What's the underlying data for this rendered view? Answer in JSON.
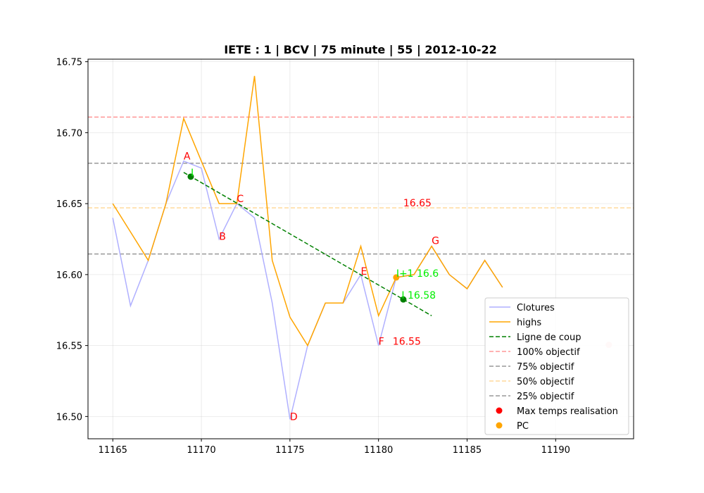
{
  "chart_data": {
    "type": "line",
    "title": "IETE : 1 | BCV | 75 minute | 55 | 2012-10-22",
    "xlabel": "",
    "ylabel": "",
    "xlim": [
      11163.6,
      11194.4
    ],
    "ylim": [
      16.4843,
      16.7518
    ],
    "x_ticks": [
      11165,
      11170,
      11175,
      11180,
      11185,
      11190
    ],
    "y_ticks": [
      16.5,
      16.55,
      16.6,
      16.65,
      16.7,
      16.75
    ],
    "y_tick_labels": [
      "16.50",
      "16.55",
      "16.60",
      "16.65",
      "16.70",
      "16.75"
    ],
    "grid": true,
    "legend_position": "lower-right",
    "colors": {
      "clotures": "#b0b0ff",
      "highs": "#ffa500",
      "ligne": "#008000",
      "obj100": "#ff9999",
      "obj75": "#999999",
      "obj50": "#ffd99c",
      "obj25": "#999999",
      "max_temps": "#ff0000",
      "pc": "#ffa500",
      "label_red": "#ff0000",
      "label_green": "#00ee00"
    },
    "series": [
      {
        "name": "Clotures",
        "x": [
          11165,
          11166,
          11167,
          11168,
          11169,
          11170,
          11171,
          11172,
          11173,
          11174,
          11175,
          11176,
          11177,
          11178,
          11179,
          11180,
          11181,
          11182,
          11183,
          11184,
          11185,
          11186,
          11187
        ],
        "y": [
          16.64,
          16.578,
          16.61,
          16.65,
          16.68,
          16.675,
          16.625,
          16.65,
          16.64,
          16.58,
          16.498,
          16.55,
          16.58,
          16.58,
          16.6,
          16.55,
          16.598,
          16.6,
          16.62,
          16.6,
          16.59,
          16.61,
          16.591
        ]
      },
      {
        "name": "highs",
        "x": [
          11165,
          11166,
          11167,
          11168,
          11169,
          11170,
          11171,
          11172,
          11173,
          11174,
          11175,
          11176,
          11177,
          11178,
          11179,
          11180,
          11181,
          11182,
          11183,
          11184,
          11185,
          11186,
          11187
        ],
        "y": [
          16.65,
          16.63,
          16.61,
          16.65,
          16.71,
          16.68,
          16.65,
          16.65,
          16.74,
          16.61,
          16.57,
          16.55,
          16.58,
          16.58,
          16.62,
          16.571,
          16.598,
          16.6,
          16.62,
          16.6,
          16.59,
          16.61,
          16.591
        ]
      },
      {
        "name": "Ligne de coup",
        "x": [
          11169,
          11183
        ],
        "y": [
          16.672,
          16.571
        ]
      }
    ],
    "hlines": [
      {
        "name": "100% objectif",
        "y": 16.711
      },
      {
        "name": "75% objectif",
        "y": 16.6785
      },
      {
        "name": "50% objectif",
        "y": 16.647
      },
      {
        "name": "25% objectif",
        "y": 16.6145
      }
    ],
    "points": [
      {
        "name": "Max temps realisation",
        "x": 11193,
        "y": 16.5505
      },
      {
        "name": "PC",
        "x": 11181,
        "y": 16.598
      },
      {
        "name": "I",
        "x": 11169.4,
        "y": 16.669
      },
      {
        "name": "I",
        "x": 11181.4,
        "y": 16.5825
      }
    ],
    "annotations": [
      {
        "text": "A",
        "x": 11169.0,
        "y": 16.681,
        "color": "red"
      },
      {
        "text": "B",
        "x": 11171.0,
        "y": 16.6245,
        "color": "red"
      },
      {
        "text": "C",
        "x": 11172.0,
        "y": 16.651,
        "color": "red"
      },
      {
        "text": "D",
        "x": 11175.0,
        "y": 16.4975,
        "color": "red"
      },
      {
        "text": "E",
        "x": 11179.0,
        "y": 16.6,
        "color": "red"
      },
      {
        "text": "F",
        "x": 11180.0,
        "y": 16.5505,
        "color": "red"
      },
      {
        "text": "G",
        "x": 11183.0,
        "y": 16.6215,
        "color": "red"
      },
      {
        "text": "16.65",
        "x": 11181.4,
        "y": 16.648,
        "color": "red"
      },
      {
        "text": "16.55",
        "x": 11180.8,
        "y": 16.5505,
        "color": "red"
      },
      {
        "text": "I",
        "x": 11169.4,
        "y": 16.6695,
        "color": "green"
      },
      {
        "text": "I+1 16.6",
        "x": 11181.0,
        "y": 16.5985,
        "color": "green"
      },
      {
        "text": "I 16.58",
        "x": 11181.3,
        "y": 16.583,
        "color": "green"
      }
    ],
    "legend": [
      "Clotures",
      "highs",
      "Ligne de coup",
      "100% objectif",
      "75% objectif",
      "50% objectif",
      "25% objectif",
      "Max temps realisation",
      "PC"
    ]
  }
}
